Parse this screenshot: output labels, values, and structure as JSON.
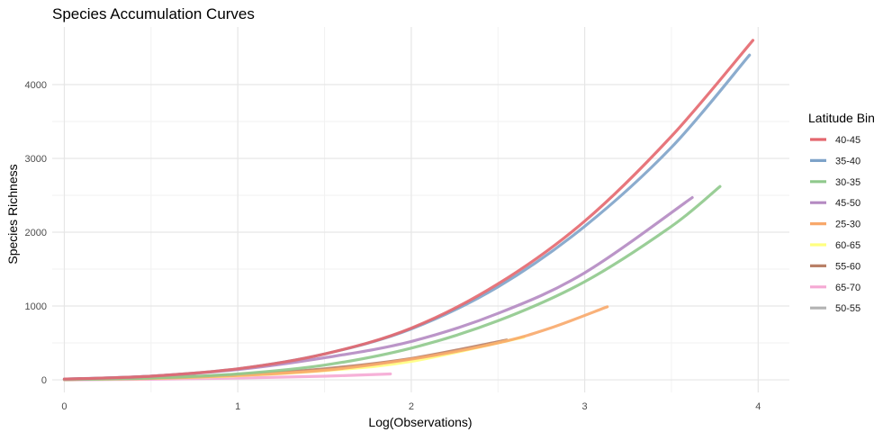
{
  "chart_data": {
    "type": "line",
    "title": "Species Accumulation Curves",
    "xlabel": "Log(Observations)",
    "ylabel": "Species Richness",
    "xlim": [
      -0.07,
      4.18
    ],
    "ylim": [
      -170,
      4780
    ],
    "x_ticks": [
      0,
      1,
      2,
      3,
      4
    ],
    "x_tick_labels": [
      "0",
      "1",
      "2",
      "3",
      "4"
    ],
    "y_ticks": [
      0,
      1000,
      2000,
      3000,
      4000
    ],
    "y_tick_labels": [
      "0",
      "1000",
      "2000",
      "3000",
      "4000"
    ],
    "grid": true,
    "legend": {
      "title": "Latitude Bin",
      "position": "right"
    },
    "series": [
      {
        "name": "40-45",
        "color": "#e4676e",
        "x": [
          0,
          0.5,
          1.0,
          1.5,
          2.0,
          2.5,
          3.0,
          3.5,
          3.97
        ],
        "y": [
          10,
          50,
          150,
          350,
          700,
          1300,
          2150,
          3300,
          4600
        ]
      },
      {
        "name": "35-40",
        "color": "#7ea3c9",
        "x": [
          0,
          0.5,
          1.0,
          1.5,
          2.0,
          2.5,
          3.0,
          3.5,
          3.95
        ],
        "y": [
          10,
          50,
          150,
          350,
          690,
          1260,
          2080,
          3150,
          4400
        ]
      },
      {
        "name": "30-35",
        "color": "#8fc98c",
        "x": [
          0,
          0.5,
          1.0,
          1.5,
          2.0,
          2.5,
          3.0,
          3.5,
          3.78
        ],
        "y": [
          5,
          25,
          80,
          200,
          430,
          800,
          1330,
          2080,
          2620
        ]
      },
      {
        "name": "45-50",
        "color": "#b48ac2",
        "x": [
          0,
          0.5,
          1.0,
          1.5,
          2.0,
          2.5,
          3.0,
          3.62
        ],
        "y": [
          10,
          50,
          140,
          300,
          520,
          900,
          1450,
          2470
        ]
      },
      {
        "name": "25-30",
        "color": "#f8a86a",
        "x": [
          0,
          0.5,
          1.0,
          1.5,
          2.0,
          2.5,
          2.8,
          3.13
        ],
        "y": [
          5,
          20,
          60,
          130,
          280,
          500,
          700,
          990
        ]
      },
      {
        "name": "60-65",
        "color": "#ffff80",
        "x": [
          0,
          0.5,
          1.0,
          1.5,
          2.0,
          2.65
        ],
        "y": [
          5,
          20,
          55,
          125,
          250,
          580
        ]
      },
      {
        "name": "55-60",
        "color": "#b98068",
        "x": [
          0,
          0.5,
          1.0,
          1.5,
          2.0,
          2.55
        ],
        "y": [
          5,
          25,
          70,
          150,
          290,
          540
        ]
      },
      {
        "name": "65-70",
        "color": "#f5a9d4",
        "x": [
          0,
          0.5,
          1.0,
          1.5,
          1.88
        ],
        "y": [
          0,
          8,
          25,
          50,
          80
        ]
      },
      {
        "name": "50-55",
        "color": "#b3b3b3",
        "x": [
          0,
          0.5,
          0.9
        ],
        "y": [
          10,
          30,
          55
        ]
      }
    ]
  }
}
